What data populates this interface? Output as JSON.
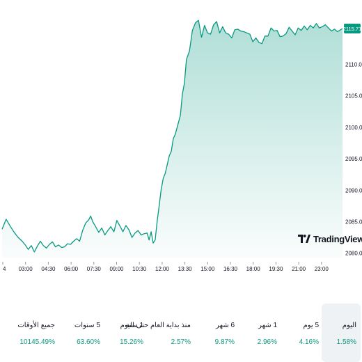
{
  "chart_data": {
    "type": "area",
    "x_ticks": [
      "4",
      "03:00",
      "04:30",
      "06:00",
      "07:30",
      "09:00",
      "10:30",
      "12:00",
      "13:30",
      "15:00",
      "16:30",
      "18:00",
      "19:30",
      "21:00",
      "23:00"
    ],
    "y_ticks": [
      "2080.00",
      "2085.00",
      "2090.00",
      "2095.00",
      "2100.00",
      "2105.00",
      "2110.00"
    ],
    "ylim": [
      2079.3,
      2117.8
    ],
    "last_value_label": "2115.71",
    "series": [
      {
        "x": [
          0,
          0.4,
          0.8,
          1.2,
          1.6,
          2.0,
          2.3,
          2.6,
          2.9,
          3.2,
          3.5,
          3.8,
          4.1,
          4.4,
          4.7,
          5.0,
          5.3,
          5.6,
          5.9,
          6.2,
          6.5,
          6.8,
          7.1,
          7.4,
          7.7,
          8.0,
          8.3,
          8.6,
          8.8,
          9.0,
          9.3,
          9.6,
          9.9,
          10.2,
          10.5,
          10.8,
          11.1,
          11.4,
          11.7,
          12.0,
          12.3,
          12.6,
          12.9,
          13.2,
          13.5,
          13.8,
          14.1,
          14.4,
          14.6,
          14.8,
          15.0,
          15.2,
          15.4,
          15.6,
          15.8,
          16.0,
          16.2,
          16.4,
          16.6,
          16.8,
          17.0,
          17.2,
          17.35,
          17.5,
          17.7,
          17.9,
          18.1,
          18.3,
          18.6,
          18.9,
          19.2,
          19.5,
          19.8,
          20.1,
          20.4,
          20.7,
          21.0,
          21.3,
          21.6,
          21.9,
          22.2,
          22.5,
          22.8,
          23.1,
          23.4,
          23.7,
          24.0,
          24.3,
          24.6,
          24.9,
          25.2,
          25.5,
          25.8,
          26.1,
          26.4,
          26.7,
          27.0,
          27.3,
          27.6,
          27.9,
          28.2,
          28.5,
          28.8,
          29.1,
          29.4,
          29.7,
          30.0,
          30.3,
          30.6,
          30.9,
          31.2,
          31.5,
          31.8,
          32.1,
          32.4,
          32.7,
          33.0,
          33.3,
          33.6,
          33.8
        ],
        "values": [
          2083.8,
          2085.4,
          2084.3,
          2083.3,
          2082.5,
          2081.9,
          2081.3,
          2080.6,
          2081.2,
          2080.2,
          2081.1,
          2081.9,
          2081.2,
          2080.8,
          2081.4,
          2081.8,
          2081.0,
          2081.3,
          2080.9,
          2081.0,
          2081.5,
          2081.4,
          2081.9,
          2082.3,
          2081.9,
          2083.6,
          2084.8,
          2085.3,
          2085.9,
          2085.0,
          2084.2,
          2083.3,
          2084.0,
          2082.9,
          2083.6,
          2084.2,
          2083.4,
          2085.2,
          2084.3,
          2083.4,
          2084.4,
          2083.7,
          2082.5,
          2083.2,
          2083.6,
          2082.9,
          2083.1,
          2083.2,
          2082.1,
          2083.4,
          2081.6,
          2082.1,
          2085.1,
          2087.6,
          2090.2,
          2091.9,
          2092.7,
          2094.1,
          2095.5,
          2096.2,
          2098.2,
          2098.9,
          2099.8,
          2100.7,
          2101.9,
          2105.3,
          2107.0,
          2110.8,
          2112.1,
          2115.4,
          2116.6,
          2117.0,
          2114.3,
          2116.2,
          2115.0,
          2114.8,
          2116.3,
          2116.8,
          2115.0,
          2116.0,
          2115.0,
          2114.8,
          2114.2,
          2115.5,
          2115.6,
          2115.3,
          2115.2,
          2115.0,
          2114.8,
          2113.6,
          2114.2,
          2113.5,
          2113.3,
          2114.5,
          2114.5,
          2115.8,
          2115.3,
          2115.4,
          2114.4,
          2114.5,
          2114.9,
          2115.9,
          2115.3,
          2114.7,
          2115.8,
          2115.4,
          2116.1,
          2115.5,
          2116.2,
          2115.8,
          2116.5,
          2115.8,
          2116.0,
          2116.3,
          2115.8,
          2115.3,
          2115.6,
          2115.2,
          2115.5,
          2115.7
        ]
      }
    ],
    "colors": {
      "line": "#089981",
      "label_bg": "#089981"
    }
  },
  "logo": {
    "text": "TradingView",
    "icon": "tradingview-logo-icon"
  },
  "periods": [
    {
      "label": "اليوم",
      "value": "1.58%",
      "active": true
    },
    {
      "label": "5 يوم",
      "value": "4.16%",
      "active": false
    },
    {
      "label": "1 شهر",
      "value": "2.96%",
      "active": false
    },
    {
      "label": "6 شهر",
      "value": "9.87%",
      "active": false
    },
    {
      "label": "منذ بداية العام حتى اليوم",
      "value": "2.57%",
      "active": false
    },
    {
      "label": "1 سنة",
      "value": "15.26%",
      "active": false
    },
    {
      "label": "5 سنوات",
      "value": "63.60%",
      "active": false
    },
    {
      "label": "جميع الأوقات",
      "value": "10145.49%",
      "active": false
    }
  ]
}
